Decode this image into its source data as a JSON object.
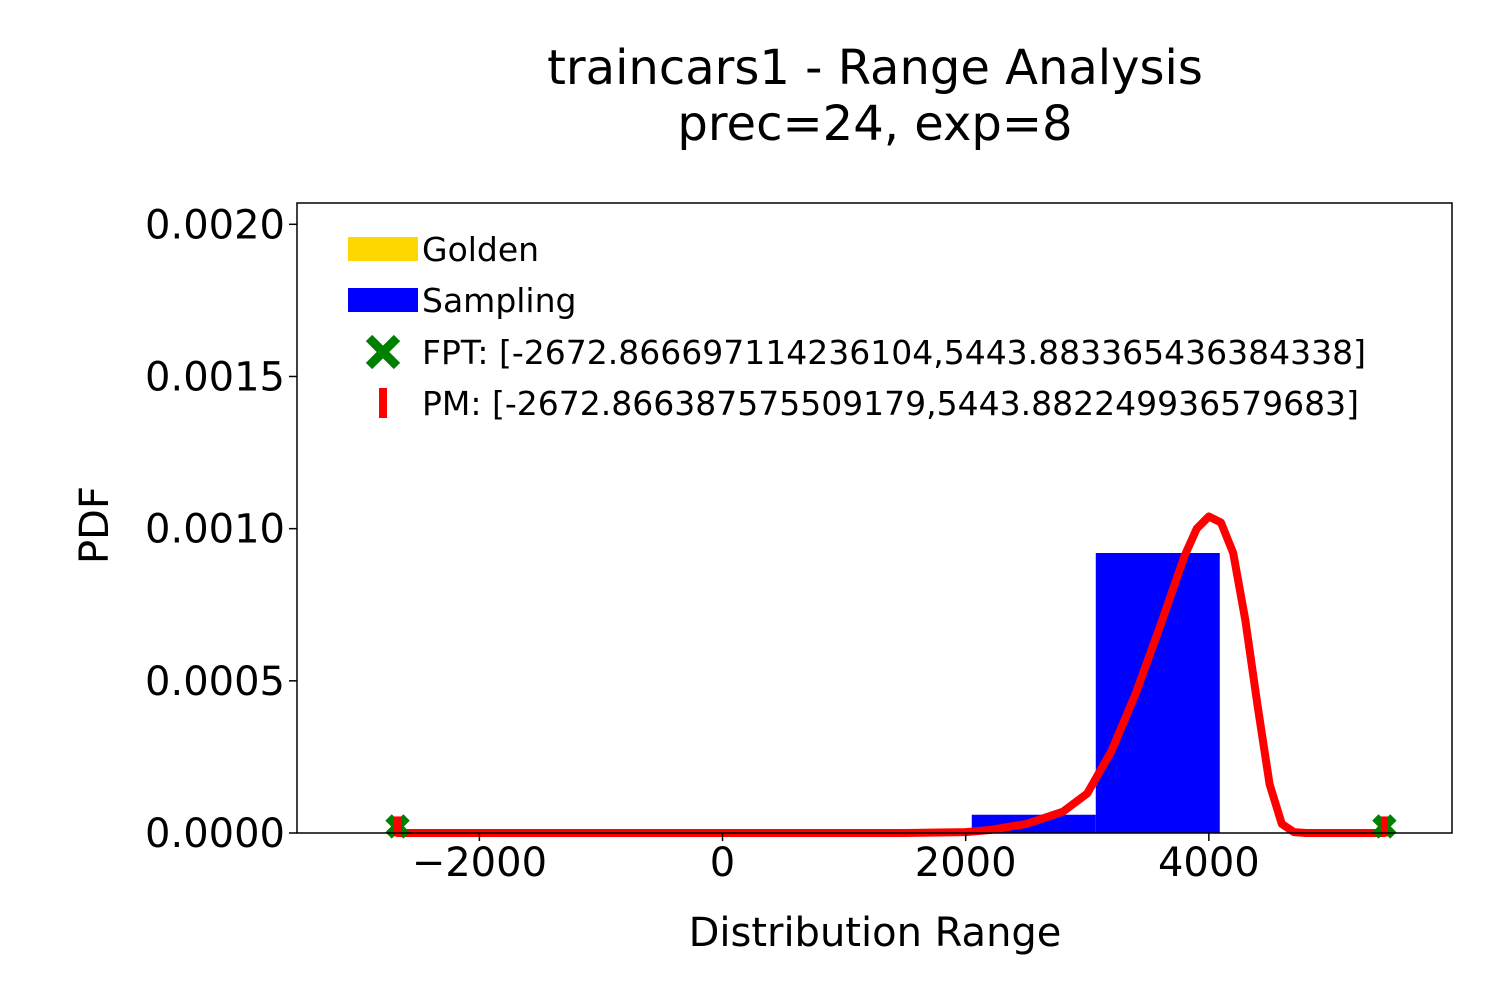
{
  "chart_data": {
    "type": "bar",
    "title": "traincars1 - Range Analysis",
    "subtitle": "prec=24, exp=8",
    "xlabel": "Distribution Range",
    "ylabel": "PDF",
    "xlim": [
      -3500,
      6000
    ],
    "ylim": [
      0,
      0.00207
    ],
    "xticks": [
      -2000,
      0,
      2000,
      4000
    ],
    "xtick_labels": [
      "−2000",
      "0",
      "2000",
      "4000"
    ],
    "yticks": [
      0,
      0.0005,
      0.001,
      0.0015,
      0.002
    ],
    "ytick_labels": [
      "0.0000",
      "0.0005",
      "0.0010",
      "0.0015",
      "0.0020"
    ],
    "grid": false,
    "legend_position": "top-left",
    "legend": [
      {
        "label": "Golden",
        "kind": "patch",
        "color": "#ffd700"
      },
      {
        "label": "Sampling",
        "kind": "patch",
        "color": "#0000ff"
      },
      {
        "label": "FPT: [-2672.866697114236104,5443.883365436384338]",
        "kind": "x-marker",
        "color": "#008000"
      },
      {
        "label": "PM: [-2672.866387575509179,5443.882249936579683]",
        "kind": "vline-marker",
        "color": "#ff0000"
      }
    ],
    "series": [
      {
        "name": "Sampling",
        "kind": "histogram",
        "color": "#0000ff",
        "bins": [
          {
            "x0": 2050,
            "x1": 3070,
            "value": 6e-05
          },
          {
            "x0": 3070,
            "x1": 4090,
            "value": 0.00092
          }
        ]
      },
      {
        "name": "PM",
        "kind": "density-curve",
        "color": "#ff0000",
        "x": [
          -2672.87,
          1500,
          2000,
          2200,
          2500,
          2800,
          3000,
          3200,
          3400,
          3600,
          3800,
          3900,
          4000,
          4100,
          4200,
          4300,
          4400,
          4500,
          4600,
          4700,
          4800,
          5443.88
        ],
        "y": [
          0,
          0,
          3e-06,
          1e-05,
          3e-05,
          7e-05,
          0.00013,
          0.00027,
          0.00046,
          0.00068,
          0.00091,
          0.001,
          0.00104,
          0.00102,
          0.00092,
          0.0007,
          0.00042,
          0.00016,
          3e-05,
          3e-06,
          0,
          0
        ]
      },
      {
        "name": "FPT",
        "kind": "markers",
        "marker": "x",
        "color": "#008000",
        "x": [
          -2672.866697114236,
          5443.883365436384
        ],
        "y": [
          1.5e-05,
          1.5e-05
        ]
      },
      {
        "name": "PM",
        "kind": "markers",
        "marker": "vline",
        "color": "#ff0000",
        "x": [
          -2672.866387575509,
          5443.88224993658
        ],
        "y": [
          1.5e-05,
          1.5e-05
        ]
      }
    ]
  }
}
